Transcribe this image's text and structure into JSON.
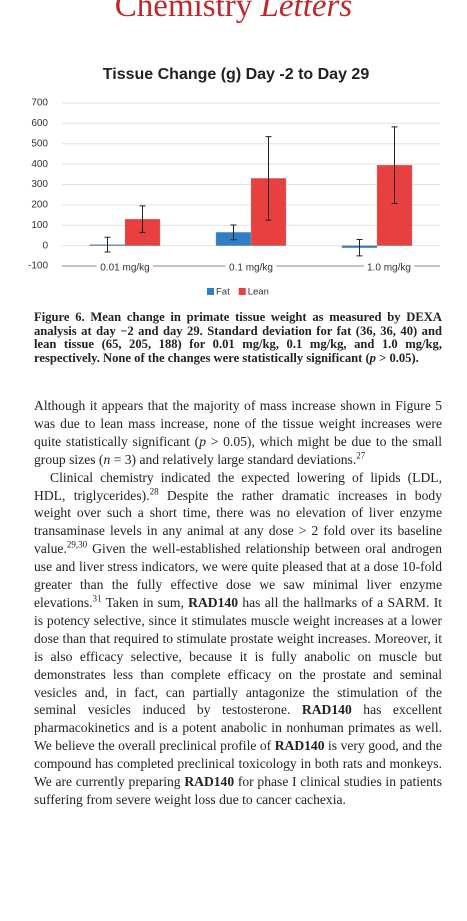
{
  "header": {
    "journal_main": "Chemistry",
    "journal_italic": "Letters"
  },
  "chart_data": {
    "type": "bar",
    "title": "Tissue Change (g) Day -2 to Day 29",
    "categories": [
      "0.01 mg/kg",
      "0.1 mg/kg",
      "1.0 mg/kg"
    ],
    "series": [
      {
        "name": "Fat",
        "color": "#2e7fc8",
        "values": [
          5,
          65,
          -10
        ],
        "errors": [
          36,
          36,
          40
        ]
      },
      {
        "name": "Lean",
        "color": "#e8403f",
        "values": [
          130,
          330,
          395
        ],
        "errors": [
          65,
          205,
          188
        ]
      }
    ],
    "ylim": [
      -100,
      700
    ],
    "yticks": [
      -100,
      0,
      100,
      200,
      300,
      400,
      500,
      600,
      700
    ],
    "grid": true,
    "legend": "bottom"
  },
  "caption": {
    "runs": [
      {
        "t": "Figure 6."
      },
      {
        "t": " Mean change in primate tissue weight as measured by DEXA analysis at day −2 and day 29. Standard deviation for fat (36, 36, 40) and lean tissue (65, 205, 188) for 0.01 mg/kg, 0.1 mg/kg, and 1.0 mg/kg, respectively. None of the changes were statistically significant ("
      },
      {
        "t": "p",
        "s": "i"
      },
      {
        "t": " > 0.05)."
      }
    ]
  },
  "body": {
    "paragraphs": [
      [
        {
          "t": "Although it appears that the majority of mass increase shown in Figure 5 was due to lean mass increase, none of the tissue weight increases were quite statistically significant ("
        },
        {
          "t": "p",
          "s": "i"
        },
        {
          "t": " > 0.05), which might be due to the small group sizes ("
        },
        {
          "t": "n",
          "s": "i"
        },
        {
          "t": " = 3) and relatively large standard deviations."
        },
        {
          "t": "27",
          "s": "sup"
        }
      ],
      [
        {
          "t": "Clinical chemistry indicated the expected lowering of lipids (LDL, HDL, triglycerides)."
        },
        {
          "t": "28",
          "s": "sup"
        },
        {
          "t": " Despite the rather dramatic increases in body weight over such a short time, there was no elevation of liver enzyme transaminase levels in any animal at any dose > 2 fold over its baseline value."
        },
        {
          "t": "29,30",
          "s": "sup"
        },
        {
          "t": " Given the well-established relationship between oral androgen use and liver stress indicators, we were quite pleased that at a dose 10-fold greater than the fully effective dose we saw minimal liver enzyme elevations."
        },
        {
          "t": "31",
          "s": "sup"
        },
        {
          "t": " Taken in sum, "
        },
        {
          "t": "RAD140",
          "s": "b"
        },
        {
          "t": " has all the hallmarks of a SARM. It is potency selective, since it stimulates muscle weight increases at a lower dose than that required to stimulate prostate weight increases. Moreover, it is also efficacy selective, because it is fully anabolic on muscle but demonstrates less than complete efficacy on the prostate and seminal vesicles and, in fact, can partially antagonize the stimulation of the seminal vesicles induced by testosterone. "
        },
        {
          "t": "RAD140",
          "s": "b"
        },
        {
          "t": " has excellent pharmacokinetics and is a potent anabolic in nonhuman primates as well. We believe the overall preclinical profile of "
        },
        {
          "t": "RAD140",
          "s": "b"
        },
        {
          "t": " is very good, and the compound has completed preclinical toxicology in both rats and monkeys. We are currently preparing "
        },
        {
          "t": "RAD140",
          "s": "b"
        },
        {
          "t": " for phase I clinical studies in patients suffering from severe weight loss due to cancer cachexia."
        }
      ]
    ]
  }
}
